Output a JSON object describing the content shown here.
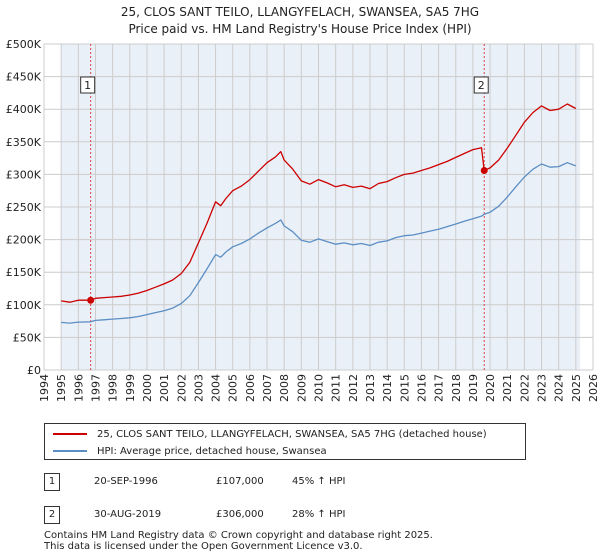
{
  "title_line1": "25, CLOS SANT TEILO, LLANGYFELACH, SWANSEA, SA5 7HG",
  "title_line2": "Price paid vs. HM Land Registry's House Price Index (HPI)",
  "chart_data": {
    "type": "line",
    "xlim": [
      1994,
      2026
    ],
    "ylim": [
      0,
      500000
    ],
    "x_ticks": [
      "1994",
      "1995",
      "1996",
      "1997",
      "1998",
      "1999",
      "2000",
      "2001",
      "2002",
      "2003",
      "2004",
      "2005",
      "2006",
      "2007",
      "2008",
      "2009",
      "2010",
      "2011",
      "2012",
      "2013",
      "2014",
      "2015",
      "2016",
      "2017",
      "2018",
      "2019",
      "2020",
      "2021",
      "2022",
      "2023",
      "2024",
      "2025",
      "2026"
    ],
    "y_ticks": [
      {
        "value": 0,
        "label": "£0"
      },
      {
        "value": 50000,
        "label": "£50K"
      },
      {
        "value": 100000,
        "label": "£100K"
      },
      {
        "value": 150000,
        "label": "£150K"
      },
      {
        "value": 200000,
        "label": "£200K"
      },
      {
        "value": 250000,
        "label": "£250K"
      },
      {
        "value": 300000,
        "label": "£300K"
      },
      {
        "value": 350000,
        "label": "£350K"
      },
      {
        "value": 400000,
        "label": "£400K"
      },
      {
        "value": 450000,
        "label": "£450K"
      },
      {
        "value": 500000,
        "label": "£500K"
      }
    ],
    "grid": true,
    "data_available_from": 1995.0,
    "data_available_to": 2025.25,
    "series": [
      {
        "name": "25, CLOS SANT TEILO, LLANGYFELACH, SWANSEA, SA5 7HG (detached house)",
        "color": "#cc0000",
        "points": [
          [
            1995.0,
            106000
          ],
          [
            1995.5,
            104000
          ],
          [
            1996.0,
            107000
          ],
          [
            1996.72,
            107000
          ],
          [
            1997.0,
            110000
          ],
          [
            1997.5,
            111000
          ],
          [
            1998.0,
            112000
          ],
          [
            1998.5,
            113000
          ],
          [
            1999.0,
            115000
          ],
          [
            1999.5,
            118000
          ],
          [
            2000.0,
            122000
          ],
          [
            2000.5,
            127000
          ],
          [
            2001.0,
            132000
          ],
          [
            2001.5,
            138000
          ],
          [
            2002.0,
            148000
          ],
          [
            2002.5,
            165000
          ],
          [
            2003.0,
            195000
          ],
          [
            2003.5,
            225000
          ],
          [
            2004.0,
            258000
          ],
          [
            2004.3,
            252000
          ],
          [
            2004.6,
            263000
          ],
          [
            2005.0,
            275000
          ],
          [
            2005.5,
            282000
          ],
          [
            2006.0,
            292000
          ],
          [
            2006.5,
            305000
          ],
          [
            2007.0,
            318000
          ],
          [
            2007.5,
            327000
          ],
          [
            2007.8,
            335000
          ],
          [
            2008.0,
            322000
          ],
          [
            2008.5,
            308000
          ],
          [
            2009.0,
            290000
          ],
          [
            2009.5,
            285000
          ],
          [
            2010.0,
            292000
          ],
          [
            2010.5,
            287000
          ],
          [
            2011.0,
            281000
          ],
          [
            2011.5,
            284000
          ],
          [
            2012.0,
            280000
          ],
          [
            2012.5,
            282000
          ],
          [
            2013.0,
            278000
          ],
          [
            2013.5,
            286000
          ],
          [
            2014.0,
            289000
          ],
          [
            2014.5,
            295000
          ],
          [
            2015.0,
            300000
          ],
          [
            2015.5,
            302000
          ],
          [
            2016.0,
            306000
          ],
          [
            2016.5,
            310000
          ],
          [
            2017.0,
            315000
          ],
          [
            2017.5,
            320000
          ],
          [
            2018.0,
            326000
          ],
          [
            2018.5,
            332000
          ],
          [
            2019.0,
            338000
          ],
          [
            2019.5,
            341000
          ],
          [
            2019.66,
            306000
          ],
          [
            2020.0,
            310000
          ],
          [
            2020.5,
            322000
          ],
          [
            2021.0,
            340000
          ],
          [
            2021.5,
            360000
          ],
          [
            2022.0,
            380000
          ],
          [
            2022.5,
            395000
          ],
          [
            2023.0,
            405000
          ],
          [
            2023.5,
            398000
          ],
          [
            2024.0,
            400000
          ],
          [
            2024.5,
            408000
          ],
          [
            2025.0,
            401000
          ]
        ]
      },
      {
        "name": "HPI: Average price, detached house, Swansea",
        "color": "#5b8ec4",
        "points": [
          [
            1995.0,
            73000
          ],
          [
            1995.5,
            72000
          ],
          [
            1996.0,
            73500
          ],
          [
            1996.72,
            74000
          ],
          [
            1997.0,
            76000
          ],
          [
            1997.5,
            77000
          ],
          [
            1998.0,
            78000
          ],
          [
            1998.5,
            79000
          ],
          [
            1999.0,
            80000
          ],
          [
            1999.5,
            82000
          ],
          [
            2000.0,
            85000
          ],
          [
            2000.5,
            88000
          ],
          [
            2001.0,
            91000
          ],
          [
            2001.5,
            95000
          ],
          [
            2002.0,
            102000
          ],
          [
            2002.5,
            114000
          ],
          [
            2003.0,
            134000
          ],
          [
            2003.5,
            155000
          ],
          [
            2004.0,
            177000
          ],
          [
            2004.3,
            173000
          ],
          [
            2004.6,
            181000
          ],
          [
            2005.0,
            189000
          ],
          [
            2005.5,
            194000
          ],
          [
            2006.0,
            201000
          ],
          [
            2006.5,
            210000
          ],
          [
            2007.0,
            218000
          ],
          [
            2007.5,
            225000
          ],
          [
            2007.8,
            230000
          ],
          [
            2008.0,
            221000
          ],
          [
            2008.5,
            212000
          ],
          [
            2009.0,
            199000
          ],
          [
            2009.5,
            196000
          ],
          [
            2010.0,
            201000
          ],
          [
            2010.5,
            197000
          ],
          [
            2011.0,
            193000
          ],
          [
            2011.5,
            195000
          ],
          [
            2012.0,
            192000
          ],
          [
            2012.5,
            194000
          ],
          [
            2013.0,
            191000
          ],
          [
            2013.5,
            196000
          ],
          [
            2014.0,
            198000
          ],
          [
            2014.5,
            203000
          ],
          [
            2015.0,
            206000
          ],
          [
            2015.5,
            207000
          ],
          [
            2016.0,
            210000
          ],
          [
            2016.5,
            213000
          ],
          [
            2017.0,
            216000
          ],
          [
            2017.5,
            220000
          ],
          [
            2018.0,
            224000
          ],
          [
            2018.5,
            228000
          ],
          [
            2019.0,
            232000
          ],
          [
            2019.5,
            236000
          ],
          [
            2019.66,
            239000
          ],
          [
            2020.0,
            242000
          ],
          [
            2020.5,
            251000
          ],
          [
            2021.0,
            265000
          ],
          [
            2021.5,
            281000
          ],
          [
            2022.0,
            296000
          ],
          [
            2022.5,
            308000
          ],
          [
            2023.0,
            316000
          ],
          [
            2023.5,
            311000
          ],
          [
            2024.0,
            312000
          ],
          [
            2024.5,
            318000
          ],
          [
            2025.0,
            313000
          ]
        ]
      }
    ],
    "annotations": [
      {
        "label": "1",
        "x": 1996.72,
        "y": 107000
      },
      {
        "label": "2",
        "x": 2019.66,
        "y": 306000
      }
    ]
  },
  "legend": {
    "property_label": "25, CLOS SANT TEILO, LLANGYFELACH, SWANSEA, SA5 7HG (detached house)",
    "hpi_label": "HPI: Average price, detached house, Swansea"
  },
  "sales": [
    {
      "num": "1",
      "date": "20-SEP-1996",
      "price": "£107,000",
      "pct": "45% ↑ HPI"
    },
    {
      "num": "2",
      "date": "30-AUG-2019",
      "price": "£306,000",
      "pct": "28% ↑ HPI"
    }
  ],
  "footer_line1": "Contains HM Land Registry data © Crown copyright and database right 2025.",
  "footer_line2": "This data is licensed under the Open Government Licence v3.0.",
  "colors": {
    "property": "#cc0000",
    "hpi": "#5b8ec4",
    "shade": "#eaf0f8",
    "grid": "#cccccc"
  }
}
